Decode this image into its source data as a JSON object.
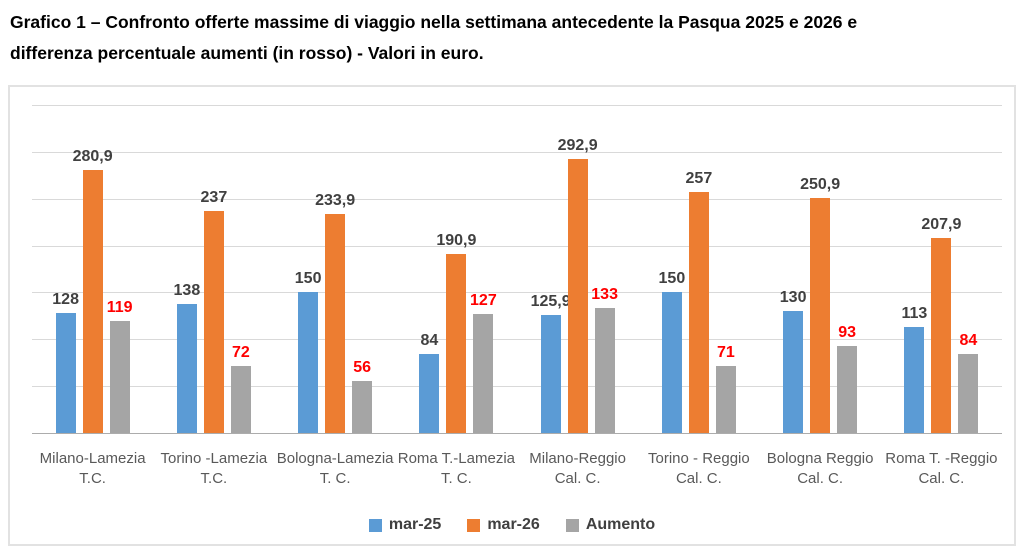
{
  "title_lines": [
    "Grafico 1 – Confronto offerte massime di viaggio nella settimana antecedente la Pasqua 2025 e 2026 e",
    "differenza percentuale aumenti (in rosso) - Valori in euro."
  ],
  "chart_data": {
    "type": "bar",
    "title": "Grafico 1 – Confronto offerte massime di viaggio nella settimana antecedente la Pasqua 2025 e 2026 e differenza percentuale aumenti (in rosso) - Valori in euro.",
    "xlabel": "",
    "ylabel": "",
    "ylim": [
      0,
      350
    ],
    "grid_step": 50,
    "grid": true,
    "y_tick_labels_visible": false,
    "legend_position": "bottom",
    "categories": [
      "Milano-Lamezia T.C.",
      "Torino -Lamezia T.C.",
      "Bologna-Lamezia T. C.",
      "Roma T.-Lamezia T. C.",
      "Milano-Reggio Cal. C.",
      "Torino - Reggio Cal. C.",
      "Bologna Reggio Cal. C.",
      "Roma T. -Reggio Cal. C."
    ],
    "category_lines": [
      [
        "Milano-Lamezia",
        "T.C."
      ],
      [
        "Torino -Lamezia",
        "T.C."
      ],
      [
        "Bologna-Lamezia",
        "T. C."
      ],
      [
        "Roma T.-Lamezia",
        "T. C."
      ],
      [
        "Milano-Reggio",
        "Cal. C."
      ],
      [
        "Torino - Reggio",
        "Cal. C."
      ],
      [
        "Bologna Reggio",
        "Cal. C."
      ],
      [
        "Roma T. -Reggio",
        "Cal. C."
      ]
    ],
    "series": [
      {
        "name": "mar-25",
        "color": "#5B9BD5",
        "label_color": "#404040",
        "values": [
          128,
          138,
          150,
          84,
          125.9,
          150,
          130,
          113
        ],
        "labels": [
          "128",
          "138",
          "150",
          "84",
          "125,9",
          "150",
          "130",
          "113"
        ]
      },
      {
        "name": "mar-26",
        "color": "#ED7D31",
        "label_color": "#404040",
        "values": [
          280.9,
          237,
          233.9,
          190.9,
          292.9,
          257,
          250.9,
          207.9
        ],
        "labels": [
          "280,9",
          "237",
          "233,9",
          "190,9",
          "292,9",
          "257",
          "250,9",
          "207,9"
        ]
      },
      {
        "name": "Aumento",
        "color": "#A5A5A5",
        "label_color": "#FF0000",
        "values": [
          119,
          72,
          56,
          127,
          133,
          71,
          93,
          84
        ],
        "labels": [
          "119",
          "72",
          "56",
          "127",
          "133",
          "71",
          "93",
          "84"
        ]
      }
    ]
  },
  "colors": {
    "gridline": "#D9D9D9",
    "axis_line": "#ACACAC",
    "category_text": "#595959",
    "legend_text": "#404040",
    "frame_border": "#E2E2E2",
    "background": "#FFFFFF",
    "title_text": "#000000"
  }
}
